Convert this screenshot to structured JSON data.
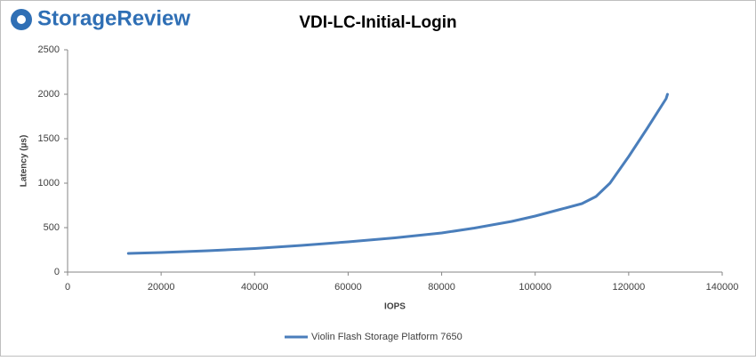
{
  "brand": "StorageReview",
  "chart_data": {
    "type": "line",
    "title": "VDI-LC-Initial-Login",
    "x_label": "IOPS",
    "y_label": "Latency (µs)",
    "x": [
      13000,
      20000,
      30000,
      40000,
      50000,
      60000,
      70000,
      80000,
      87000,
      95000,
      100000,
      105000,
      110000,
      113000,
      116000,
      120000,
      124000,
      128000,
      128300
    ],
    "series": [
      {
        "name": "Violin Flash Storage Platform 7650",
        "color": "#4a7ebb",
        "values": [
          210,
          220,
          240,
          265,
          300,
          340,
          385,
          440,
          495,
          570,
          630,
          700,
          770,
          850,
          1000,
          1300,
          1620,
          1950,
          2000
        ]
      }
    ],
    "xlim": [
      0,
      140000
    ],
    "xticks": [
      0,
      20000,
      40000,
      60000,
      80000,
      100000,
      120000,
      140000
    ],
    "ylim": [
      0,
      2500
    ],
    "yticks": [
      0,
      500,
      1000,
      1500,
      2000,
      2500
    ],
    "grid": false,
    "legend": "bottom"
  }
}
